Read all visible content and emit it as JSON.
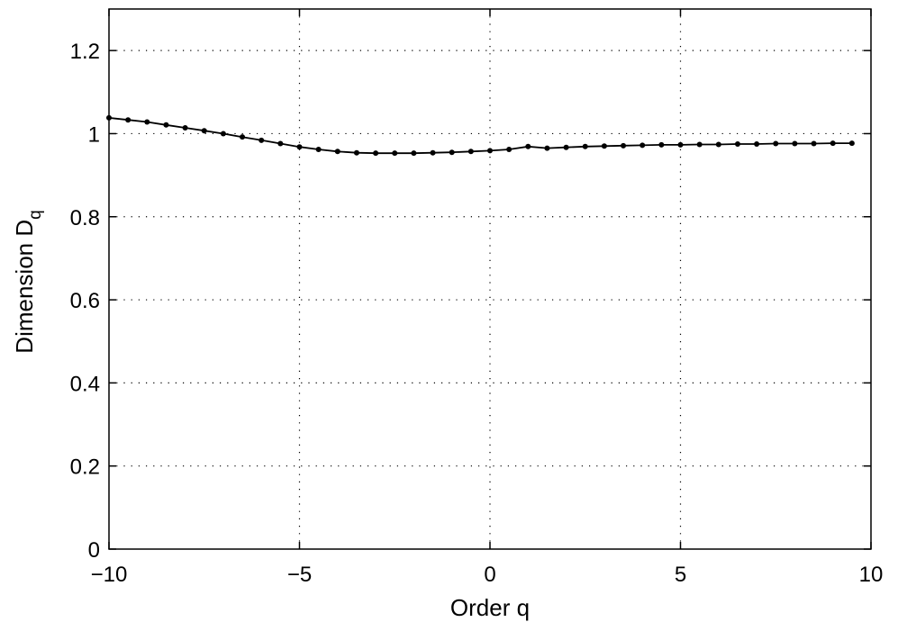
{
  "chart_data": {
    "type": "line",
    "title": "",
    "xlabel": "Order q",
    "ylabel": {
      "main": "Dimension D",
      "subscript": "q"
    },
    "xlim": [
      -10,
      10
    ],
    "ylim": [
      0,
      1.3
    ],
    "xticks": [
      -10,
      -5,
      0,
      5,
      10
    ],
    "xtick_labels": [
      "−10",
      "−5",
      "0",
      "5",
      "10"
    ],
    "yticks": [
      0,
      0.2,
      0.4,
      0.6,
      0.8,
      1.0,
      1.2
    ],
    "ytick_labels": [
      "0",
      "0.2",
      "0.4",
      "0.6",
      "0.8",
      "1",
      "1.2"
    ],
    "grid": true,
    "grid_style": "dotted",
    "colors": {
      "line": "#000000",
      "marker": "#000000",
      "grid": "#000000",
      "axes": "#000000"
    },
    "series": [
      {
        "marker": "dot",
        "x": [
          -10,
          -9.5,
          -9,
          -8.5,
          -8,
          -7.5,
          -7,
          -6.5,
          -6,
          -5.5,
          -5,
          -4.5,
          -4,
          -3.5,
          -3,
          -2.5,
          -2,
          -1.5,
          -1,
          -0.5,
          0,
          0.5,
          1,
          1.5,
          2,
          2.5,
          3,
          3.5,
          4,
          4.5,
          5,
          5.5,
          6,
          6.5,
          7,
          7.5,
          8,
          8.5,
          9,
          9.5
        ],
        "y": [
          1.038,
          1.033,
          1.028,
          1.021,
          1.014,
          1.007,
          1.0,
          0.992,
          0.984,
          0.976,
          0.968,
          0.962,
          0.957,
          0.954,
          0.953,
          0.953,
          0.953,
          0.954,
          0.955,
          0.957,
          0.959,
          0.962,
          0.969,
          0.965,
          0.967,
          0.969,
          0.97,
          0.971,
          0.972,
          0.973,
          0.973,
          0.974,
          0.974,
          0.975,
          0.975,
          0.976,
          0.976,
          0.976,
          0.977,
          0.977
        ]
      }
    ]
  }
}
